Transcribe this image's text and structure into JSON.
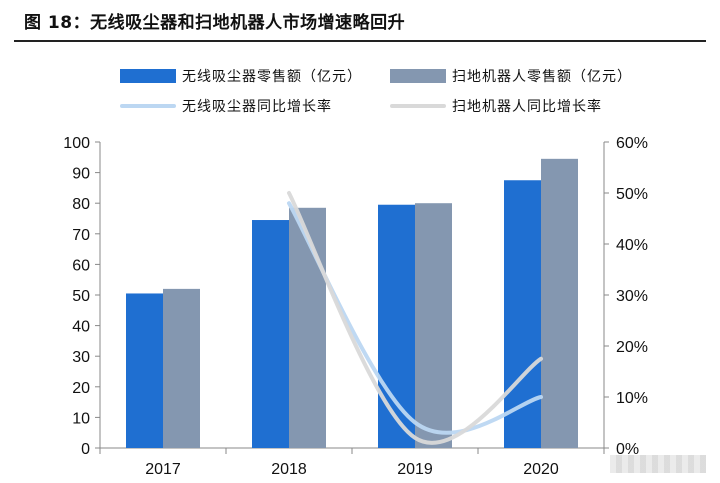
{
  "figure": {
    "title": "图 18：无线吸尘器和扫地机器人市场增速略回升"
  },
  "legend": {
    "items": [
      {
        "label": "无线吸尘器零售额（亿元）",
        "kind": "bar",
        "color": "#1f6fd1"
      },
      {
        "label": "扫地机器人零售额（亿元）",
        "kind": "bar",
        "color": "#8497b0"
      },
      {
        "label": "无线吸尘器同比增长率",
        "kind": "line",
        "color": "#bcd7f2"
      },
      {
        "label": "扫地机器人同比增长率",
        "kind": "line",
        "color": "#d9d9d9"
      }
    ]
  },
  "chart_data": {
    "type": "bar",
    "title": "图 18：无线吸尘器和扫地机器人市场增速略回升",
    "categories": [
      "2017",
      "2018",
      "2019",
      "2020"
    ],
    "series": [
      {
        "name": "无线吸尘器零售额（亿元）",
        "type": "bar",
        "axis": "left",
        "color": "#1f6fd1",
        "values": [
          50.5,
          74.5,
          79.5,
          87.5
        ]
      },
      {
        "name": "扫地机器人零售额（亿元）",
        "type": "bar",
        "axis": "left",
        "color": "#8497b0",
        "values": [
          52.0,
          78.5,
          80.0,
          94.5
        ]
      },
      {
        "name": "无线吸尘器同比增长率",
        "type": "line",
        "axis": "right",
        "color": "#bcd7f2",
        "values": [
          null,
          0.48,
          0.05,
          0.1
        ]
      },
      {
        "name": "扫地机器人同比增长率",
        "type": "line",
        "axis": "right",
        "color": "#d9d9d9",
        "values": [
          null,
          0.5,
          0.02,
          0.175
        ]
      }
    ],
    "ylim": [
      0,
      100
    ],
    "yticks": [
      "0",
      "10",
      "20",
      "30",
      "40",
      "50",
      "60",
      "70",
      "80",
      "90",
      "100"
    ],
    "y2lim": [
      0,
      0.6
    ],
    "y2ticks": [
      "0%",
      "10%",
      "20%",
      "30%",
      "40%",
      "50%",
      "60%"
    ],
    "legend_position": "top",
    "grid": false
  }
}
